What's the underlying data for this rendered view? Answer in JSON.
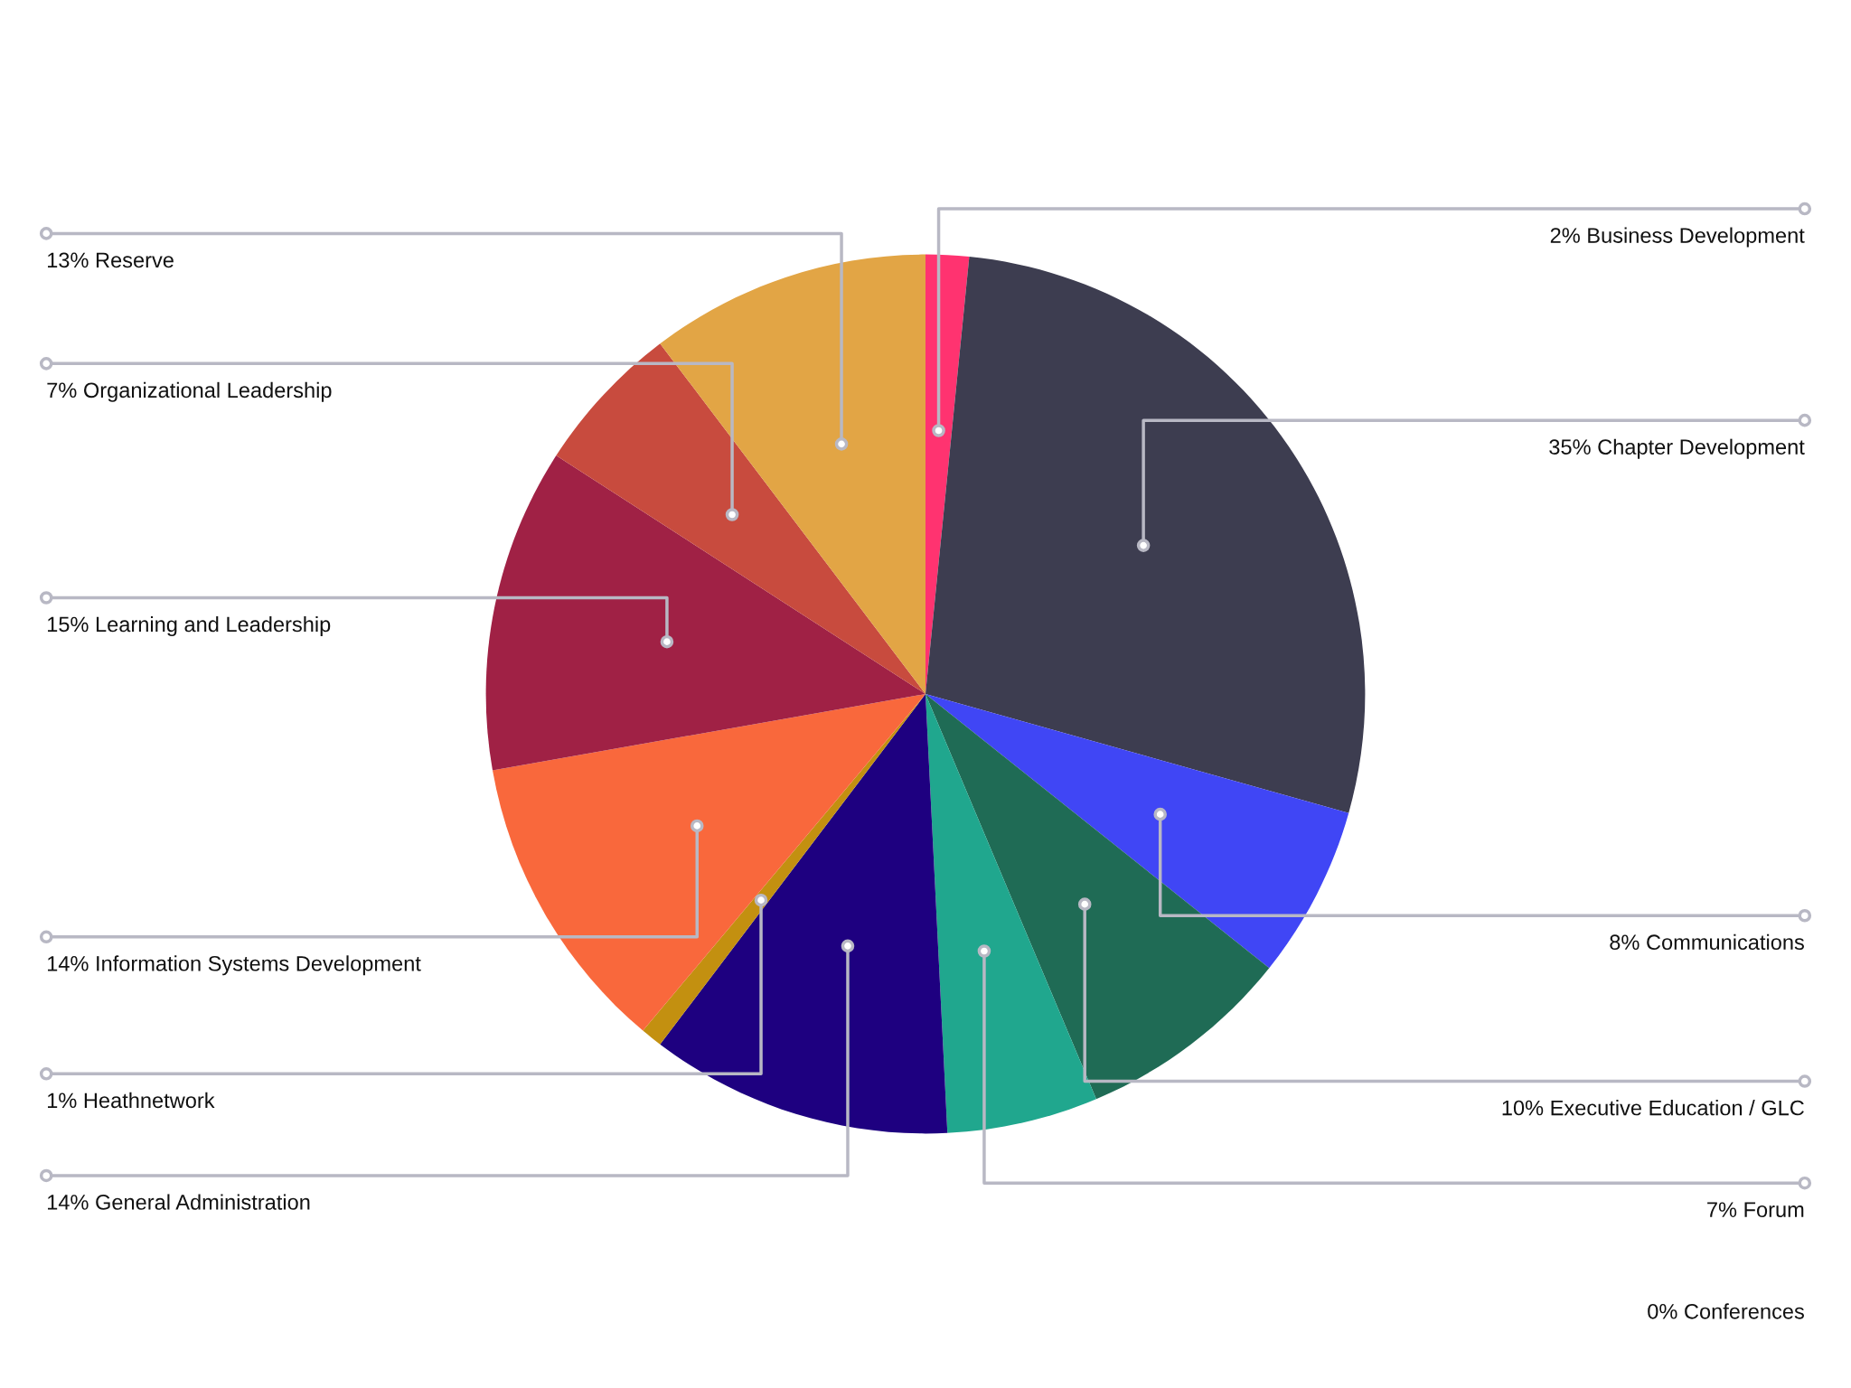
{
  "chart_data": {
    "type": "pie",
    "categories": [
      "Business Development",
      "Chapter Development",
      "Communications",
      "Executive Education / GLC",
      "Forum",
      "Conferences",
      "General Administration",
      "Heathnetwork",
      "Information Systems Development",
      "Learning and Leadership",
      "Organizational Leadership",
      "Reserve"
    ],
    "values": [
      2,
      35,
      8,
      10,
      7,
      0,
      14,
      1,
      14,
      15,
      7,
      13
    ],
    "value_labels": [
      "2%",
      "35%",
      "8%",
      "10%",
      "7%",
      "0%",
      "14%",
      "1%",
      "14%",
      "15%",
      "7%",
      "13%"
    ],
    "colors": [
      "#ff3370",
      "#3d3d50",
      "#4046f5",
      "#1f6b55",
      "#20a78e",
      "#7fb3d5",
      "#1e0080",
      "#c39010",
      "#f9683c",
      "#a02145",
      "#c84b3e",
      "#e2a545"
    ]
  }
}
